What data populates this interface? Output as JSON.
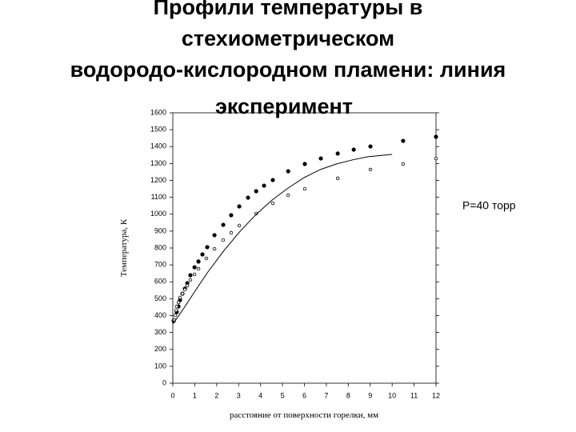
{
  "chart_data": {
    "type": "scatter",
    "title_lines": [
      "Профили температуры в",
      "стехиометрическом",
      "водородо-кислородном пламени: линия",
      "эксперимент"
    ],
    "annotation": "P=40 торр",
    "x_label": "расстояние от поверхности горелки, мм",
    "y_label": "Температура, К",
    "xlim": [
      0,
      12
    ],
    "xticks": [
      0,
      1,
      2,
      3,
      4,
      5,
      6,
      7,
      8,
      9,
      10,
      11,
      12
    ],
    "ylim": [
      0,
      1600
    ],
    "yticks": [
      0,
      100,
      200,
      300,
      400,
      500,
      600,
      700,
      800,
      900,
      1000,
      1100,
      1200,
      1300,
      1400,
      1500,
      1600
    ],
    "series": [
      {
        "mode": "markers",
        "marker": "filled",
        "color": "#000000",
        "x": [
          0.04,
          0.18,
          0.26,
          0.33,
          0.44,
          0.55,
          0.66,
          0.8,
          0.99,
          1.17,
          1.35,
          1.57,
          1.9,
          2.3,
          2.66,
          3.03,
          3.43,
          3.8,
          4.16,
          4.56,
          5.26,
          6.02,
          6.75,
          7.52,
          8.25,
          9.01,
          10.5,
          12
        ],
        "values": [
          369,
          421,
          454,
          492,
          530,
          559,
          592,
          639,
          686,
          720,
          762,
          805,
          876,
          937,
          994,
          1046,
          1098,
          1136,
          1169,
          1202,
          1254,
          1297,
          1330,
          1359,
          1382,
          1401,
          1434,
          1458
        ]
      },
      {
        "mode": "markers",
        "marker": "open",
        "color": "#000000",
        "x": [
          0.07,
          0.11,
          0.15,
          0.18,
          0.26,
          0.33,
          0.44,
          0.55,
          0.66,
          0.8,
          0.99,
          1.17,
          1.53,
          1.9,
          2.3,
          2.66,
          3.03,
          3.8,
          4.56,
          5.26,
          6.02,
          7.52,
          9.01,
          10.5,
          12
        ],
        "values": [
          374,
          402,
          431,
          454,
          478,
          507,
          530,
          554,
          578,
          611,
          644,
          677,
          738,
          795,
          847,
          890,
          933,
          1004,
          1065,
          1112,
          1150,
          1212,
          1264,
          1297,
          1330
        ]
      },
      {
        "mode": "line",
        "color": "#000000",
        "x": [
          0,
          0.51,
          1.06,
          1.6,
          2.34,
          3.07,
          3.8,
          4.53,
          5.26,
          5.99,
          6.72,
          7.45,
          8.18,
          8.9,
          10
        ],
        "values": [
          350,
          445,
          554,
          658,
          786,
          899,
          999,
          1084,
          1155,
          1217,
          1264,
          1297,
          1321,
          1340,
          1354
        ]
      }
    ]
  }
}
